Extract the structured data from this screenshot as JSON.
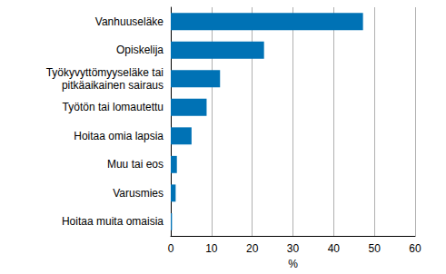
{
  "chart_data": {
    "type": "bar",
    "orientation": "horizontal",
    "categories": [
      "Vanhuuseläke",
      "Opiskelija",
      "Työkyvyttömyyseläke tai\npitkäaikainen sairaus",
      "Työtön tai lomautettu",
      "Hoitaa omia lapsia",
      "Muu tai eos",
      "Varusmies",
      "Hoitaa muita omaisia"
    ],
    "values": [
      47.2,
      22.9,
      12.1,
      8.8,
      5.1,
      1.5,
      1.2,
      0.3
    ],
    "color": "#0072b5",
    "xlabel": "%",
    "xlim": [
      0,
      60
    ],
    "xticks": [
      0,
      10,
      20,
      30,
      40,
      50,
      60
    ],
    "grid": true
  }
}
